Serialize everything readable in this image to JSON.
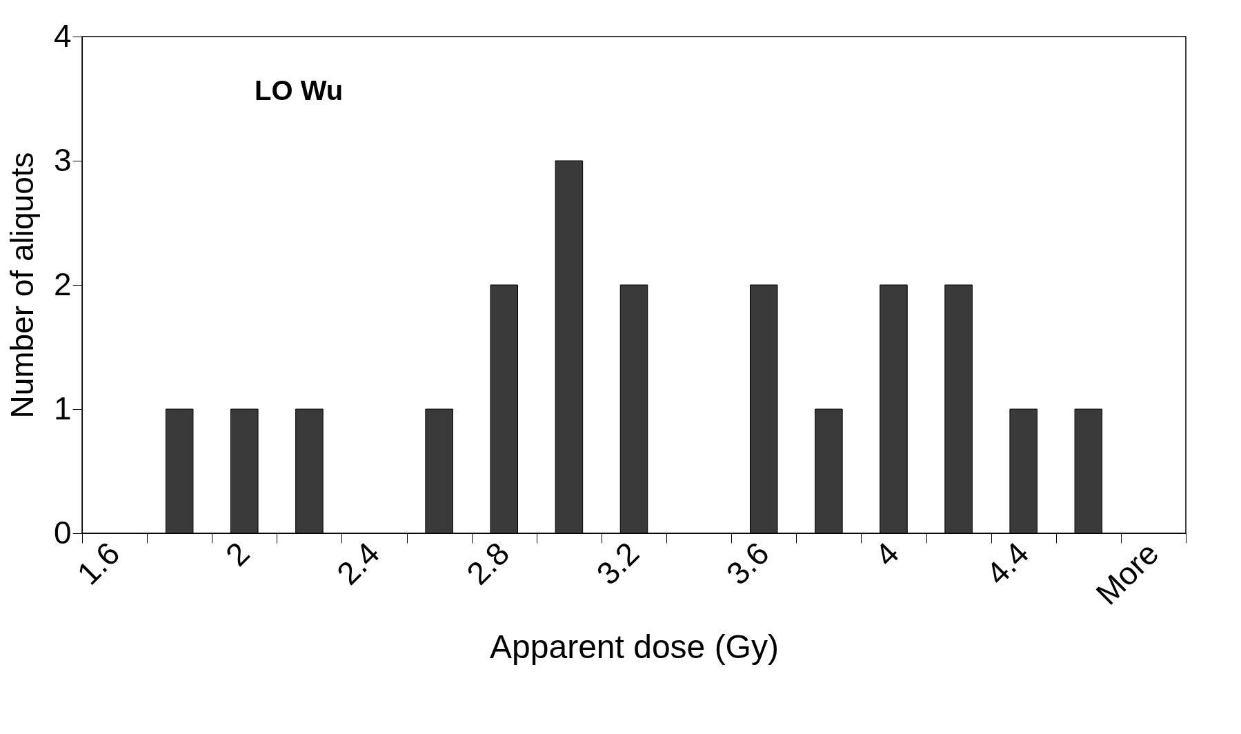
{
  "chart_data": {
    "type": "bar",
    "xlabel": "Apparent dose (Gy)",
    "ylabel": "Number of aliquots",
    "annotations": [
      "LO Wu"
    ],
    "categories": [
      "1.6",
      null,
      "2",
      null,
      "2.4",
      null,
      "2.8",
      null,
      "3.2",
      null,
      "3.6",
      null,
      "4",
      null,
      "4.4",
      null,
      "More"
    ],
    "values": [
      0,
      1,
      1,
      1,
      0,
      1,
      2,
      3,
      2,
      0,
      2,
      1,
      2,
      2,
      1,
      1,
      0
    ],
    "color": "#3a3a3a",
    "ylim": [
      0,
      4
    ],
    "yticks": [
      0,
      1,
      2,
      3,
      4
    ],
    "grid": false
  }
}
